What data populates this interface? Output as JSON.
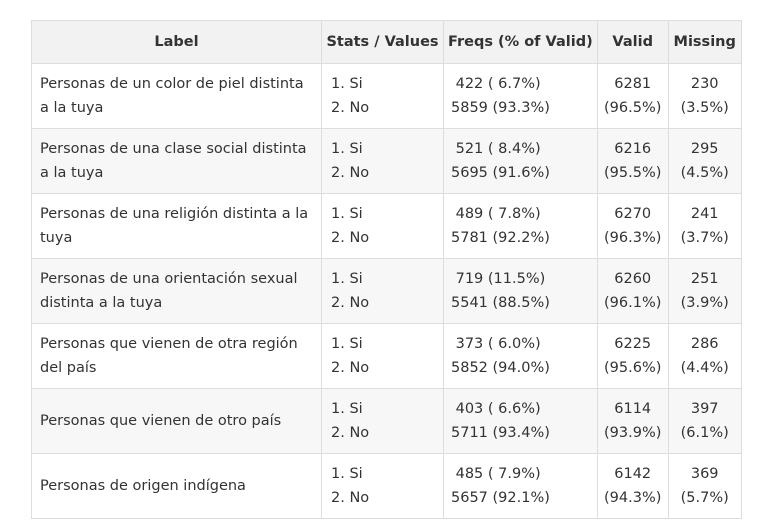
{
  "headers": {
    "label": "Label",
    "stats": "Stats / Values",
    "freqs": "Freqs (% of Valid)",
    "valid": "Valid",
    "missing": "Missing"
  },
  "rows": [
    {
      "label": "Personas de un color de piel distinta a la tuya",
      "stats": [
        "1. Si",
        "2. No"
      ],
      "freqs": [
        " 422 ( 6.7%)",
        "5859 (93.3%)"
      ],
      "valid": [
        "6281",
        "(96.5%)"
      ],
      "missing": [
        "230",
        "(3.5%)"
      ]
    },
    {
      "label": "Personas de una clase social distinta a la tuya",
      "stats": [
        "1. Si",
        "2. No"
      ],
      "freqs": [
        " 521 ( 8.4%)",
        "5695 (91.6%)"
      ],
      "valid": [
        "6216",
        "(95.5%)"
      ],
      "missing": [
        "295",
        "(4.5%)"
      ]
    },
    {
      "label": "Personas de una religión distinta a la tuya",
      "stats": [
        "1. Si",
        "2. No"
      ],
      "freqs": [
        " 489 ( 7.8%)",
        "5781 (92.2%)"
      ],
      "valid": [
        "6270",
        "(96.3%)"
      ],
      "missing": [
        "241",
        "(3.7%)"
      ]
    },
    {
      "label": "Personas de una orientación sexual distinta a la tuya",
      "stats": [
        "1. Si",
        "2. No"
      ],
      "freqs": [
        " 719 (11.5%)",
        "5541 (88.5%)"
      ],
      "valid": [
        "6260",
        "(96.1%)"
      ],
      "missing": [
        "251",
        "(3.9%)"
      ]
    },
    {
      "label": "Personas que vienen de otra región del país",
      "stats": [
        "1. Si",
        "2. No"
      ],
      "freqs": [
        " 373 ( 6.0%)",
        "5852 (94.0%)"
      ],
      "valid": [
        "6225",
        "(95.6%)"
      ],
      "missing": [
        "286",
        "(4.4%)"
      ]
    },
    {
      "label": "Personas que vienen de otro país",
      "stats": [
        "1. Si",
        "2. No"
      ],
      "freqs": [
        " 403 ( 6.6%)",
        "5711 (93.4%)"
      ],
      "valid": [
        "6114",
        "(93.9%)"
      ],
      "missing": [
        "397",
        "(6.1%)"
      ]
    },
    {
      "label": "Personas de origen indígena",
      "stats": [
        "1. Si",
        "2. No"
      ],
      "freqs": [
        " 485 ( 7.9%)",
        "5657 (92.1%)"
      ],
      "valid": [
        "6142",
        "(94.3%)"
      ],
      "missing": [
        "369",
        "(5.7%)"
      ]
    }
  ]
}
